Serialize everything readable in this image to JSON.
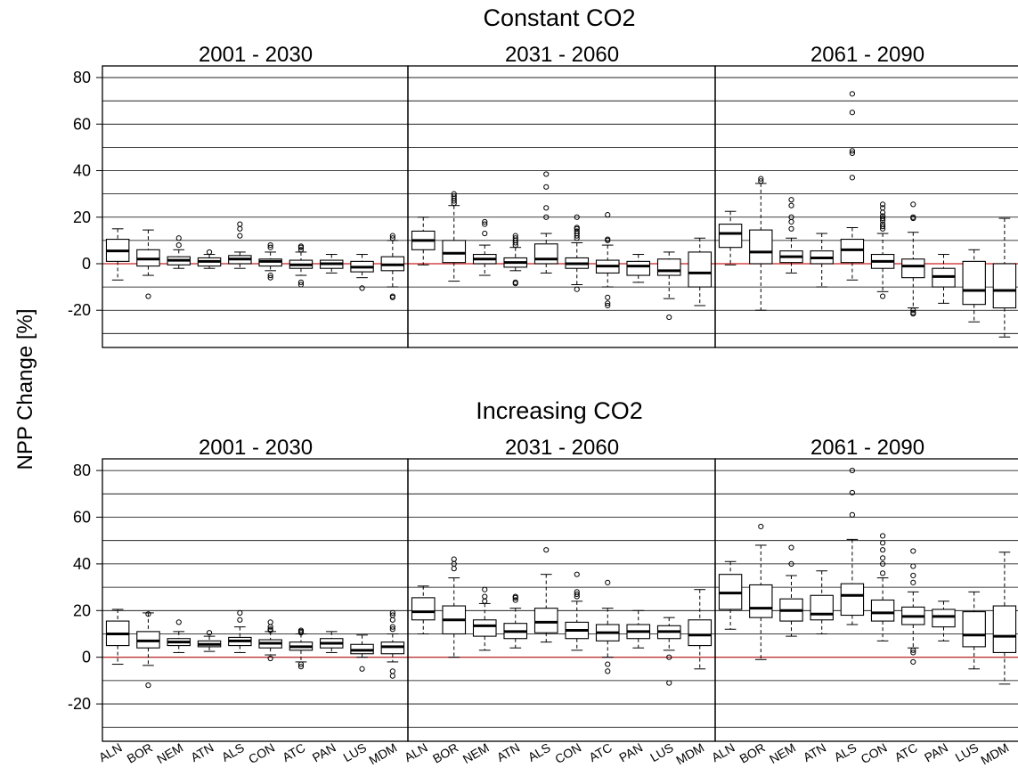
{
  "y_axis_label": "NPP Change [%]",
  "colors": {
    "zero_line": "#cc2222",
    "box_line": "#000000",
    "grid": "#000000"
  },
  "chart_data": [
    {
      "type": "boxplot",
      "title": "Constant CO2",
      "ylabel": "NPP Change [%]",
      "ylim": [
        -36,
        85
      ],
      "yticks": [
        -20,
        0,
        20,
        40,
        60,
        80
      ],
      "grid": true,
      "categories": [
        "ALN",
        "BOR",
        "NEM",
        "ATN",
        "ALS",
        "CON",
        "ATC",
        "PAN",
        "LUS",
        "MDM"
      ],
      "panels": [
        {
          "label": "2001 - 2030",
          "boxes": [
            {
              "min": -7,
              "q1": 1,
              "median": 5.5,
              "q3": 10.5,
              "max": 15,
              "outliers": []
            },
            {
              "min": -5,
              "q1": -1,
              "median": 2,
              "q3": 6,
              "max": 14.5,
              "outliers": [
                -14
              ]
            },
            {
              "min": -2,
              "q1": -0.5,
              "median": 1.5,
              "q3": 3,
              "max": 6,
              "outliers": [
                8,
                11
              ]
            },
            {
              "min": -2,
              "q1": -1,
              "median": 1,
              "q3": 2.5,
              "max": 4,
              "outliers": [
                5
              ]
            },
            {
              "min": -2,
              "q1": 0,
              "median": 2,
              "q3": 3.5,
              "max": 5,
              "outliers": [
                12,
                15,
                17
              ]
            },
            {
              "min": -3,
              "q1": -1,
              "median": 1,
              "q3": 2,
              "max": 5,
              "outliers": [
                -5,
                -6,
                7,
                8
              ]
            },
            {
              "min": -5,
              "q1": -2,
              "median": -0.5,
              "q3": 1.5,
              "max": 5,
              "outliers": [
                -8,
                -9,
                6,
                7,
                7.5
              ]
            },
            {
              "min": -4,
              "q1": -2,
              "median": 0,
              "q3": 1.5,
              "max": 4,
              "outliers": []
            },
            {
              "min": -6,
              "q1": -3.5,
              "median": -1.5,
              "q3": 1,
              "max": 4,
              "outliers": [
                -10.5
              ]
            },
            {
              "min": -10,
              "q1": -3,
              "median": -0.5,
              "q3": 3,
              "max": 10,
              "outliers": [
                -14,
                -14.5,
                11,
                12
              ]
            }
          ]
        },
        {
          "label": "2031 - 2060",
          "boxes": [
            {
              "min": -0.5,
              "q1": 6,
              "median": 10,
              "q3": 14,
              "max": 20,
              "outliers": []
            },
            {
              "min": -7.5,
              "q1": 0.5,
              "median": 4.5,
              "q3": 10,
              "max": 25,
              "outliers": [
                26,
                27,
                28,
                29,
                30
              ]
            },
            {
              "min": -5,
              "q1": 0,
              "median": 2,
              "q3": 4,
              "max": 8,
              "outliers": [
                13,
                17,
                18
              ]
            },
            {
              "min": -3,
              "q1": -1.5,
              "median": 0.5,
              "q3": 2.5,
              "max": 7,
              "outliers": [
                -8,
                -8.5,
                8,
                9,
                10,
                11,
                12
              ]
            },
            {
              "min": -4,
              "q1": 0,
              "median": 2,
              "q3": 8.5,
              "max": 13,
              "outliers": [
                20,
                24,
                33,
                38.5
              ]
            },
            {
              "min": -9,
              "q1": -2,
              "median": 0,
              "q3": 2.5,
              "max": 9,
              "outliers": [
                -11,
                11,
                12,
                13,
                14,
                15,
                15.5,
                20
              ]
            },
            {
              "min": -10,
              "q1": -4,
              "median": -1,
              "q3": 1.5,
              "max": 8,
              "outliers": [
                -14.5,
                -17,
                -18,
                10,
                10.5,
                21
              ]
            },
            {
              "min": -8,
              "q1": -5,
              "median": -1,
              "q3": 1,
              "max": 4,
              "outliers": []
            },
            {
              "min": -15,
              "q1": -5,
              "median": -3,
              "q3": 2,
              "max": 5,
              "outliers": [
                -23
              ]
            },
            {
              "min": -18,
              "q1": -10,
              "median": -4,
              "q3": 5,
              "max": 11,
              "outliers": []
            }
          ]
        },
        {
          "label": "2061 - 2090",
          "boxes": [
            {
              "min": -0.5,
              "q1": 7,
              "median": 13,
              "q3": 17,
              "max": 22.5,
              "outliers": []
            },
            {
              "min": -20,
              "q1": 0,
              "median": 5,
              "q3": 14.5,
              "max": 34.5,
              "outliers": [
                35.5,
                36.5
              ]
            },
            {
              "min": -4,
              "q1": 0.5,
              "median": 3,
              "q3": 5.5,
              "max": 11,
              "outliers": [
                15,
                18,
                20,
                25,
                27.5
              ]
            },
            {
              "min": -10,
              "q1": 0,
              "median": 2.5,
              "q3": 5.5,
              "max": 13,
              "outliers": []
            },
            {
              "min": -7,
              "q1": 0.5,
              "median": 6,
              "q3": 10.5,
              "max": 15.5,
              "outliers": [
                37,
                47.5,
                48.5,
                65,
                73
              ]
            },
            {
              "min": -12,
              "q1": -2,
              "median": 1,
              "q3": 4,
              "max": 13,
              "outliers": [
                -14,
                15,
                16,
                17,
                18.5,
                19.5,
                20.5,
                22,
                24,
                25.5
              ]
            },
            {
              "min": -19,
              "q1": -6,
              "median": -1,
              "q3": 2,
              "max": 13.5,
              "outliers": [
                -20,
                -21,
                -21.5,
                19.5,
                20,
                25.5
              ]
            },
            {
              "min": -17,
              "q1": -10,
              "median": -5.5,
              "q3": -2,
              "max": 4,
              "outliers": []
            },
            {
              "min": -25,
              "q1": -17.5,
              "median": -11.5,
              "q3": 1,
              "max": 6,
              "outliers": []
            },
            {
              "min": -31.5,
              "q1": -19,
              "median": -11.5,
              "q3": 0,
              "max": 19.5,
              "outliers": []
            }
          ]
        }
      ]
    },
    {
      "type": "boxplot",
      "title": "Increasing CO2",
      "ylabel": "NPP Change [%]",
      "ylim": [
        -36,
        85
      ],
      "yticks": [
        -20,
        0,
        20,
        40,
        60,
        80
      ],
      "grid": true,
      "categories": [
        "ALN",
        "BOR",
        "NEM",
        "ATN",
        "ALS",
        "CON",
        "ATC",
        "PAN",
        "LUS",
        "MDM"
      ],
      "panels": [
        {
          "label": "2001 - 2030",
          "boxes": [
            {
              "min": -3,
              "q1": 5,
              "median": 10,
              "q3": 15.5,
              "max": 20.5,
              "outliers": []
            },
            {
              "min": -3.5,
              "q1": 4,
              "median": 7,
              "q3": 11,
              "max": 19,
              "outliers": [
                -12,
                18.5
              ]
            },
            {
              "min": 2,
              "q1": 5,
              "median": 6.5,
              "q3": 8,
              "max": 11,
              "outliers": [
                15
              ]
            },
            {
              "min": 2.5,
              "q1": 4.5,
              "median": 5.5,
              "q3": 7,
              "max": 9,
              "outliers": [
                10.5
              ]
            },
            {
              "min": 2,
              "q1": 5,
              "median": 7,
              "q3": 8.5,
              "max": 13,
              "outliers": [
                16,
                19
              ]
            },
            {
              "min": 1,
              "q1": 4,
              "median": 6,
              "q3": 7.5,
              "max": 11,
              "outliers": [
                -0.5,
                11.5,
                12,
                13,
                15
              ]
            },
            {
              "min": -2,
              "q1": 3,
              "median": 4.5,
              "q3": 6.5,
              "max": 10,
              "outliers": [
                -3,
                -4,
                10.5,
                11,
                11.5
              ]
            },
            {
              "min": 2,
              "q1": 4,
              "median": 6,
              "q3": 8,
              "max": 11,
              "outliers": []
            },
            {
              "min": 0,
              "q1": 1.5,
              "median": 3,
              "q3": 5.5,
              "max": 9.5,
              "outliers": [
                -5
              ]
            },
            {
              "min": -2,
              "q1": 1.5,
              "median": 4.5,
              "q3": 6.5,
              "max": 10,
              "outliers": [
                -6,
                -8,
                12,
                13,
                16,
                18,
                19
              ]
            }
          ]
        },
        {
          "label": "2031 - 2060",
          "boxes": [
            {
              "min": 10,
              "q1": 16,
              "median": 19.5,
              "q3": 25.5,
              "max": 30.5,
              "outliers": []
            },
            {
              "min": 0,
              "q1": 10,
              "median": 16,
              "q3": 22,
              "max": 34,
              "outliers": [
                38,
                40,
                42
              ]
            },
            {
              "min": 3,
              "q1": 9,
              "median": 13.5,
              "q3": 16,
              "max": 23,
              "outliers": [
                24,
                26,
                29
              ]
            },
            {
              "min": 4,
              "q1": 8,
              "median": 11,
              "q3": 14.5,
              "max": 21,
              "outliers": [
                24.5,
                25.5,
                26
              ]
            },
            {
              "min": 6.5,
              "q1": 10.5,
              "median": 15,
              "q3": 21,
              "max": 35.5,
              "outliers": [
                46
              ]
            },
            {
              "min": 3,
              "q1": 8,
              "median": 11.5,
              "q3": 15,
              "max": 24,
              "outliers": [
                26,
                27,
                28,
                35.5
              ]
            },
            {
              "min": 0,
              "q1": 7,
              "median": 10.5,
              "q3": 14,
              "max": 21,
              "outliers": [
                -3,
                -6,
                32
              ]
            },
            {
              "min": 4,
              "q1": 8,
              "median": 11,
              "q3": 14,
              "max": 20,
              "outliers": []
            },
            {
              "min": 3,
              "q1": 8,
              "median": 11,
              "q3": 13.5,
              "max": 17,
              "outliers": [
                0,
                -11
              ]
            },
            {
              "min": -5,
              "q1": 5,
              "median": 9.5,
              "q3": 16,
              "max": 29,
              "outliers": []
            }
          ]
        },
        {
          "label": "2061 - 2090",
          "boxes": [
            {
              "min": 12,
              "q1": 20.5,
              "median": 27.5,
              "q3": 35.5,
              "max": 41,
              "outliers": []
            },
            {
              "min": -1,
              "q1": 17,
              "median": 21,
              "q3": 31,
              "max": 48,
              "outliers": [
                56
              ]
            },
            {
              "min": 9,
              "q1": 15.5,
              "median": 20,
              "q3": 25,
              "max": 35,
              "outliers": [
                40,
                47
              ]
            },
            {
              "min": 10,
              "q1": 16,
              "median": 18.5,
              "q3": 26.5,
              "max": 37,
              "outliers": []
            },
            {
              "min": 14,
              "q1": 18,
              "median": 26.5,
              "q3": 31.5,
              "max": 50.5,
              "outliers": [
                61,
                70.5,
                80
              ]
            },
            {
              "min": 7,
              "q1": 15.5,
              "median": 19,
              "q3": 24.5,
              "max": 34,
              "outliers": [
                36,
                40,
                42.5,
                46,
                49,
                52
              ]
            },
            {
              "min": 4,
              "q1": 14,
              "median": 17.5,
              "q3": 21.5,
              "max": 28,
              "outliers": [
                -2,
                2,
                3,
                32,
                35,
                39,
                45.5
              ]
            },
            {
              "min": 7,
              "q1": 13,
              "median": 17.5,
              "q3": 20.5,
              "max": 24,
              "outliers": []
            },
            {
              "min": -5,
              "q1": 4.5,
              "median": 9.5,
              "q3": 19.5,
              "max": 28,
              "outliers": []
            },
            {
              "min": -11.5,
              "q1": 2,
              "median": 9,
              "q3": 22,
              "max": 45,
              "outliers": []
            }
          ]
        }
      ]
    }
  ]
}
